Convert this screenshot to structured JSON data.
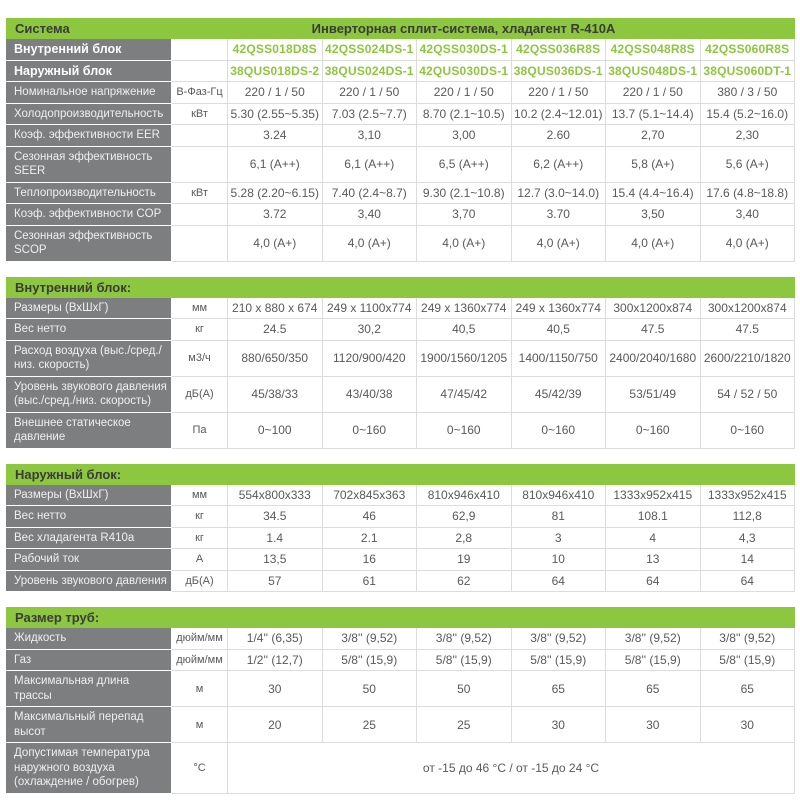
{
  "colors": {
    "accent_green": "#8dc63f",
    "label_gray": "#7d7e7f",
    "data_text": "#58595b",
    "section_title_text": "#3b3b39"
  },
  "sections": [
    {
      "title": "Система",
      "title_right": "Инверторная сплит-система, хладагент R-410A",
      "rows": [
        {
          "label": "Внутренний блок",
          "label_bold": true,
          "unit": "",
          "value_style": "model",
          "values": [
            "42QSS018D8S",
            "42QSS024DS-1",
            "42QSS030DS-1",
            "42QSS036R8S",
            "42QSS048R8S",
            "42QSS060R8S"
          ]
        },
        {
          "label": "Наружный блок",
          "label_bold": true,
          "unit": "",
          "value_style": "model",
          "values": [
            "38QUS018DS-2",
            "38QUS024DS-1",
            "42QUS030DS-1",
            "38QUS036DS-1",
            "38QUS048DS-1",
            "38QUS060DT-1"
          ]
        },
        {
          "label": "Номинальное напряжение",
          "unit": "В-Фаз-Гц",
          "values": [
            "220 / 1 / 50",
            "220 / 1 / 50",
            "220 / 1 / 50",
            "220 / 1 / 50",
            "220 / 1 / 50",
            "380 / 3 / 50"
          ]
        },
        {
          "label": "Холодопроизводительность",
          "unit": "кВт",
          "values": [
            "5.30 (2.55~5.35)",
            "7.03 (2.5~7.7)",
            "8.70 (2.1~10.5)",
            "10.2 (2.4~12.01)",
            "13.7 (5.1~14.4)",
            "15.4 (5.2~16.0)"
          ]
        },
        {
          "label": "Коэф. эффективности EER",
          "unit": "",
          "values": [
            "3.24",
            "3,10",
            "3,00",
            "2.60",
            "2,70",
            "2,30"
          ]
        },
        {
          "label": "Сезонная эффективность SEER",
          "unit": "",
          "values": [
            "6,1  (A++)",
            "6,1  (A++)",
            "6,5  (A++)",
            "6,2 (A++)",
            "5,8  (A+)",
            "5,6  (A+)"
          ]
        },
        {
          "label": "Теплопроизводительность",
          "unit": "кВт",
          "values": [
            "5.28 (2.20~6.15)",
            "7.40 (2.4~8.7)",
            "9.30 (2.1~10.8)",
            "12.7 (3.0~14.0)",
            "15.4 (4.4~16.4)",
            "17.6 (4.8~18.8)"
          ]
        },
        {
          "label": "Коэф. эффективности COP",
          "unit": "",
          "values": [
            "3.72",
            "3,40",
            "3,70",
            "3.70",
            "3,50",
            "3,40"
          ]
        },
        {
          "label": "Сезонная эффективность SCOP",
          "unit": "",
          "values": [
            "4,0 (A+)",
            "4,0 (A+)",
            "4,0 (A+)",
            "4,0 (A+)",
            "4,0 (A+)",
            "4,0 (A+)"
          ]
        }
      ]
    },
    {
      "title": "Внутренний блок:",
      "title_right": "",
      "rows": [
        {
          "label": "Размеры (ВхШхГ)",
          "unit": "мм",
          "values": [
            "210 x 880 x 674",
            "249 x 1100x774",
            "249 x 1360x774",
            "249 x 1360x774",
            "300x1200x874",
            "300x1200x874"
          ]
        },
        {
          "label": "Вес нетто",
          "unit": "кг",
          "values": [
            "24.5",
            "30,2",
            "40,5",
            "40,5",
            "47.5",
            "47.5"
          ]
        },
        {
          "label": "Расход воздуха (выс./сред./низ. скорость)",
          "unit": "м3/ч",
          "values": [
            "880/650/350",
            "1120/900/420",
            "1900/1560/1205",
            "1400/1150/750",
            "2400/2040/1680",
            "2600/2210/1820"
          ]
        },
        {
          "label": "Уровень звукового давления (выс./сред./низ. скорость)",
          "unit": "дБ(А)",
          "values": [
            "45/38/33",
            "43/40/38",
            "47/45/42",
            "45/42/39",
            "53/51/49",
            "54 / 52 / 50"
          ]
        },
        {
          "label": "Внешнее статическое давление",
          "unit": "Па",
          "values": [
            "0~100",
            "0~160",
            "0~160",
            "0~160",
            "0~160",
            "0~160"
          ]
        }
      ]
    },
    {
      "title": "Наружный блок:",
      "title_right": "",
      "rows": [
        {
          "label": "Размеры (ВхШхГ)",
          "unit": "мм",
          "values": [
            "554x800x333",
            "702x845x363",
            "810x946x410",
            "810x946x410",
            "1333x952x415",
            "1333x952x415"
          ]
        },
        {
          "label": "Вес нетто",
          "unit": "кг",
          "values": [
            "34.5",
            "46",
            "62,9",
            "81",
            "108.1",
            "112,8"
          ]
        },
        {
          "label": "Вес хладагента R410a",
          "unit": "кг",
          "values": [
            "1.4",
            "2.1",
            "2,8",
            "3",
            "4",
            "4,3"
          ]
        },
        {
          "label": "Рабочий ток",
          "unit": "А",
          "values": [
            "13,5",
            "16",
            "19",
            "10",
            "13",
            "14"
          ]
        },
        {
          "label": "Уровень звукового давления",
          "unit": "дБ(А)",
          "values": [
            "57",
            "61",
            "62",
            "64",
            "64",
            "64"
          ]
        }
      ]
    },
    {
      "title": "Размер труб:",
      "title_right": "",
      "rows": [
        {
          "label": "Жидкость",
          "unit": "дюйм/мм",
          "values": [
            "1/4'' (6,35)",
            "3/8'' (9,52)",
            "3/8'' (9,52)",
            "3/8'' (9,52)",
            "3/8'' (9,52)",
            "3/8'' (9,52)"
          ]
        },
        {
          "label": "Газ",
          "unit": "дюйм/мм",
          "values": [
            "1/2'' (12,7)",
            "5/8'' (15,9)",
            "5/8'' (15,9)",
            "5/8'' (15,9)",
            "5/8'' (15,9)",
            "5/8'' (15,9)"
          ]
        },
        {
          "label": "Максимальная длина трассы",
          "unit": "м",
          "values": [
            "30",
            "50",
            "50",
            "65",
            "65",
            "65"
          ]
        },
        {
          "label": "Максимальный перепад высот",
          "unit": "м",
          "values": [
            "20",
            "25",
            "25",
            "30",
            "30",
            "30"
          ]
        },
        {
          "label": "Допустимая температура наружного воздуха (охлаждение / обогрев)",
          "unit": "°С",
          "merged_value": "от -15 до 46 °С / от -15 до 24 °С"
        }
      ]
    }
  ]
}
